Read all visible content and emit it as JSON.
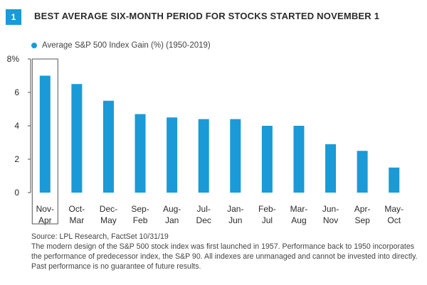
{
  "figure": {
    "number": "1",
    "title": "BEST AVERAGE SIX-MONTH PERIOD FOR STOCKS STARTED NOVEMBER 1",
    "legend_label": "Average S&P 500 Index Gain (%) (1950-2019)",
    "footnote": [
      "Source: LPL Research, FactSet  10/31/19",
      "The modern design of the S&P 500 stock index was first launched in 1957. Performance back to 1950 incorporates",
      "the performance of predecessor index, the S&P 90. All indexes are unmanaged and cannot be invested into directly.",
      "Past performance is no guarantee of future results."
    ]
  },
  "colors": {
    "bar": "#1a9ad6",
    "axis": "#555555",
    "highlight_box": "#555555",
    "text": "#2b2b2b"
  },
  "chart_data": {
    "type": "bar",
    "categories": [
      [
        "Nov-",
        "Apr"
      ],
      [
        "Oct-",
        "Mar"
      ],
      [
        "Dec-",
        "May"
      ],
      [
        "Sep-",
        "Feb"
      ],
      [
        "Aug-",
        "Jan"
      ],
      [
        "Jul-",
        "Dec"
      ],
      [
        "Jan-",
        "Jun"
      ],
      [
        "Feb-",
        "Jul"
      ],
      [
        "Mar-",
        "Aug"
      ],
      [
        "Jun-",
        "Nov"
      ],
      [
        "Apr-",
        "Sep"
      ],
      [
        "May-",
        "Oct"
      ]
    ],
    "series": [
      {
        "values": [
          7.0,
          6.5,
          5.5,
          4.7,
          4.5,
          4.4,
          4.4,
          4.0,
          4.0,
          2.9,
          2.5,
          1.5
        ]
      }
    ],
    "yticks": [
      0,
      2,
      4,
      6,
      8
    ],
    "ytick_labels": [
      "0",
      "2",
      "4",
      "6",
      "8%"
    ],
    "ylim": [
      0,
      8
    ],
    "grid": false,
    "legend_position": "top-left",
    "highlighted_category": 0
  }
}
